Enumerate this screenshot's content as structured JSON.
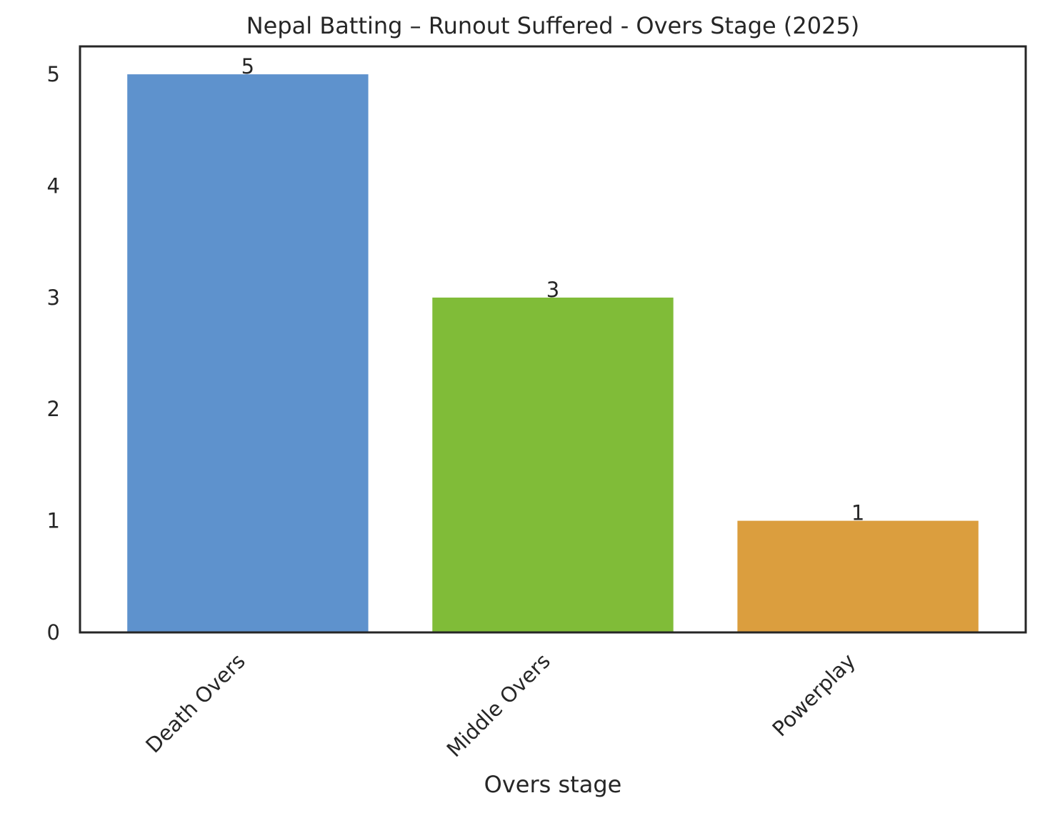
{
  "chart_data": {
    "type": "bar",
    "title": "Nepal Batting – Runout Suffered - Overs Stage (2025)",
    "xlabel": "Overs stage",
    "ylabel": "",
    "categories": [
      "Death Overs",
      "Middle Overs",
      "Powerplay"
    ],
    "values": [
      5,
      3,
      1
    ],
    "data_labels": [
      "5",
      "3",
      "1"
    ],
    "colors": [
      "#5e92cd",
      "#80bc38",
      "#db9e3e"
    ],
    "ylim": [
      0,
      5.25
    ],
    "yticks": [
      0,
      1,
      2,
      3,
      4,
      5
    ],
    "grid": false,
    "legend": "none"
  }
}
